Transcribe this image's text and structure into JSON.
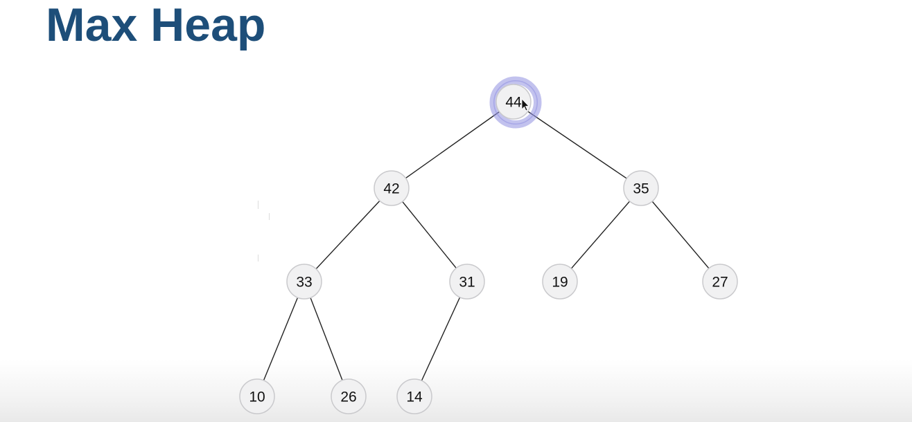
{
  "title": "Max Heap",
  "heap": {
    "nodes": [
      {
        "id": "n0",
        "value": "44",
        "highlighted": true
      },
      {
        "id": "n1",
        "value": "42"
      },
      {
        "id": "n2",
        "value": "35"
      },
      {
        "id": "n3",
        "value": "33"
      },
      {
        "id": "n4",
        "value": "31"
      },
      {
        "id": "n5",
        "value": "19"
      },
      {
        "id": "n6",
        "value": "27"
      },
      {
        "id": "n7",
        "value": "10"
      },
      {
        "id": "n8",
        "value": "26"
      },
      {
        "id": "n9",
        "value": "14"
      }
    ],
    "edges": [
      [
        "n0",
        "n1"
      ],
      [
        "n0",
        "n2"
      ],
      [
        "n1",
        "n3"
      ],
      [
        "n1",
        "n4"
      ],
      [
        "n2",
        "n5"
      ],
      [
        "n2",
        "n6"
      ],
      [
        "n3",
        "n7"
      ],
      [
        "n3",
        "n8"
      ],
      [
        "n4",
        "n9"
      ]
    ]
  },
  "colors": {
    "title": "#1d4e79",
    "node_fill": "#f1f1f2",
    "node_stroke": "#c9c9cc",
    "edge": "#222222",
    "highlight": "#8f8fe0"
  },
  "icons": {
    "cursor": "mouse-pointer-icon"
  }
}
